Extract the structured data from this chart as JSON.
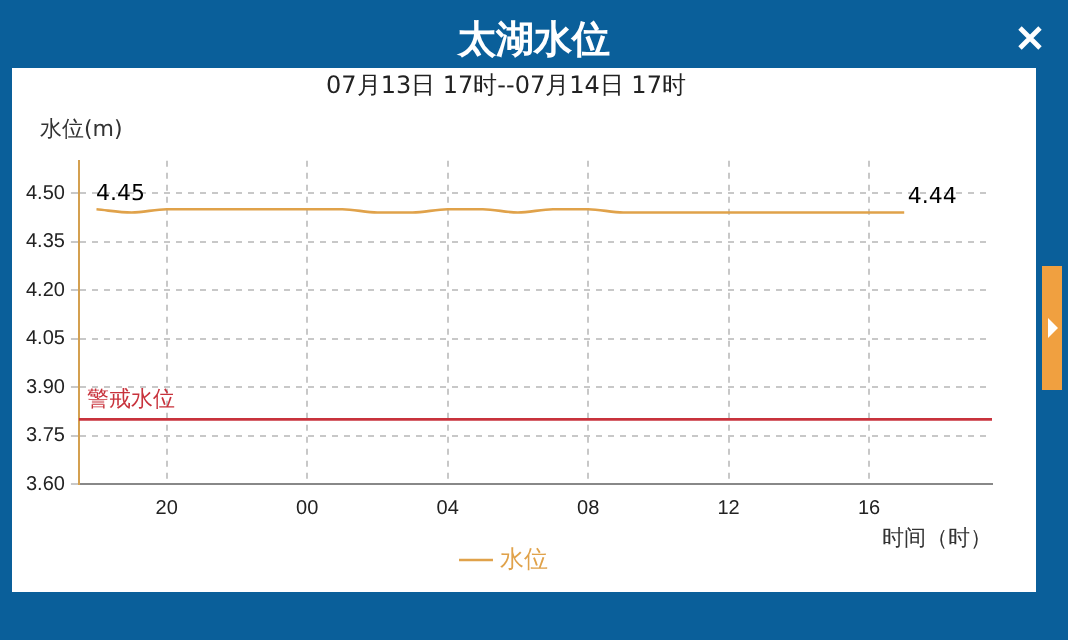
{
  "chart_data": {
    "type": "line",
    "title": "太湖水位",
    "subtitle": "07月13日 17时--07月14日 17时",
    "ylabel": "水位(m)",
    "xlabel": "时间（时）",
    "categories": [
      null,
      null,
      "20",
      null,
      null,
      null,
      "00",
      null,
      null,
      null,
      "04",
      null,
      null,
      null,
      "08",
      null,
      null,
      null,
      "12",
      null,
      null,
      null,
      "16",
      null,
      null,
      null
    ],
    "series": [
      {
        "name": "水位",
        "color": "#e0a24a",
        "values": [
          4.45,
          4.44,
          4.45,
          4.45,
          4.45,
          4.45,
          4.45,
          4.45,
          4.44,
          4.44,
          4.45,
          4.45,
          4.44,
          4.45,
          4.45,
          4.44,
          4.44,
          4.44,
          4.44,
          4.44,
          4.44,
          4.44,
          4.44,
          4.44,
          null,
          null
        ],
        "value_labels": [
          "4.45",
          null,
          null,
          null,
          null,
          null,
          null,
          null,
          null,
          null,
          null,
          null,
          null,
          null,
          null,
          null,
          null,
          null,
          null,
          null,
          null,
          null,
          null,
          "4.44",
          null,
          null
        ]
      }
    ],
    "ylim": [
      3.6,
      4.6
    ],
    "yticks": [
      {
        "value": 3.6,
        "label": "3.60"
      },
      {
        "value": 3.75,
        "label": "3.75"
      },
      {
        "value": 3.9,
        "label": "3.90"
      },
      {
        "value": 4.05,
        "label": "4.05"
      },
      {
        "value": 4.2,
        "label": "4.20"
      },
      {
        "value": 4.35,
        "label": "4.35"
      },
      {
        "value": 4.5,
        "label": "4.50"
      }
    ],
    "ref_lines": [
      {
        "axis": "y",
        "value": 3.8,
        "label": "警戒水位",
        "color": "#c8323c"
      }
    ],
    "grid": true,
    "legend": "bottom",
    "marker": "none",
    "line_style": "solid"
  }
}
